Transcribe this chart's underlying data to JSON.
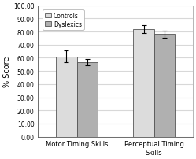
{
  "groups": [
    "Motor Timing Skills",
    "Perceptual Timing\nSkills"
  ],
  "controls_values": [
    61.0,
    82.0
  ],
  "dyslexics_values": [
    56.5,
    78.0
  ],
  "controls_errors": [
    4.5,
    3.0
  ],
  "dyslexics_errors": [
    2.5,
    2.5
  ],
  "controls_color": "#dcdcdc",
  "dyslexics_color": "#b0b0b0",
  "ylabel": "% Score",
  "ylim": [
    0,
    100
  ],
  "yticks": [
    0,
    10,
    20,
    30,
    40,
    50,
    60,
    70,
    80,
    90,
    100
  ],
  "ytick_labels": [
    "0.00",
    "10.00",
    "20.00",
    "30.00",
    "40.00",
    "50.00",
    "60.00",
    "70.00",
    "80.00",
    "90.00",
    "100.00"
  ],
  "legend_labels": [
    "Controls",
    "Dyslexics"
  ],
  "bar_width": 0.35,
  "group_positions": [
    1.0,
    2.3
  ],
  "background_color": "#ffffff",
  "grid_color": "#d8d8d8"
}
